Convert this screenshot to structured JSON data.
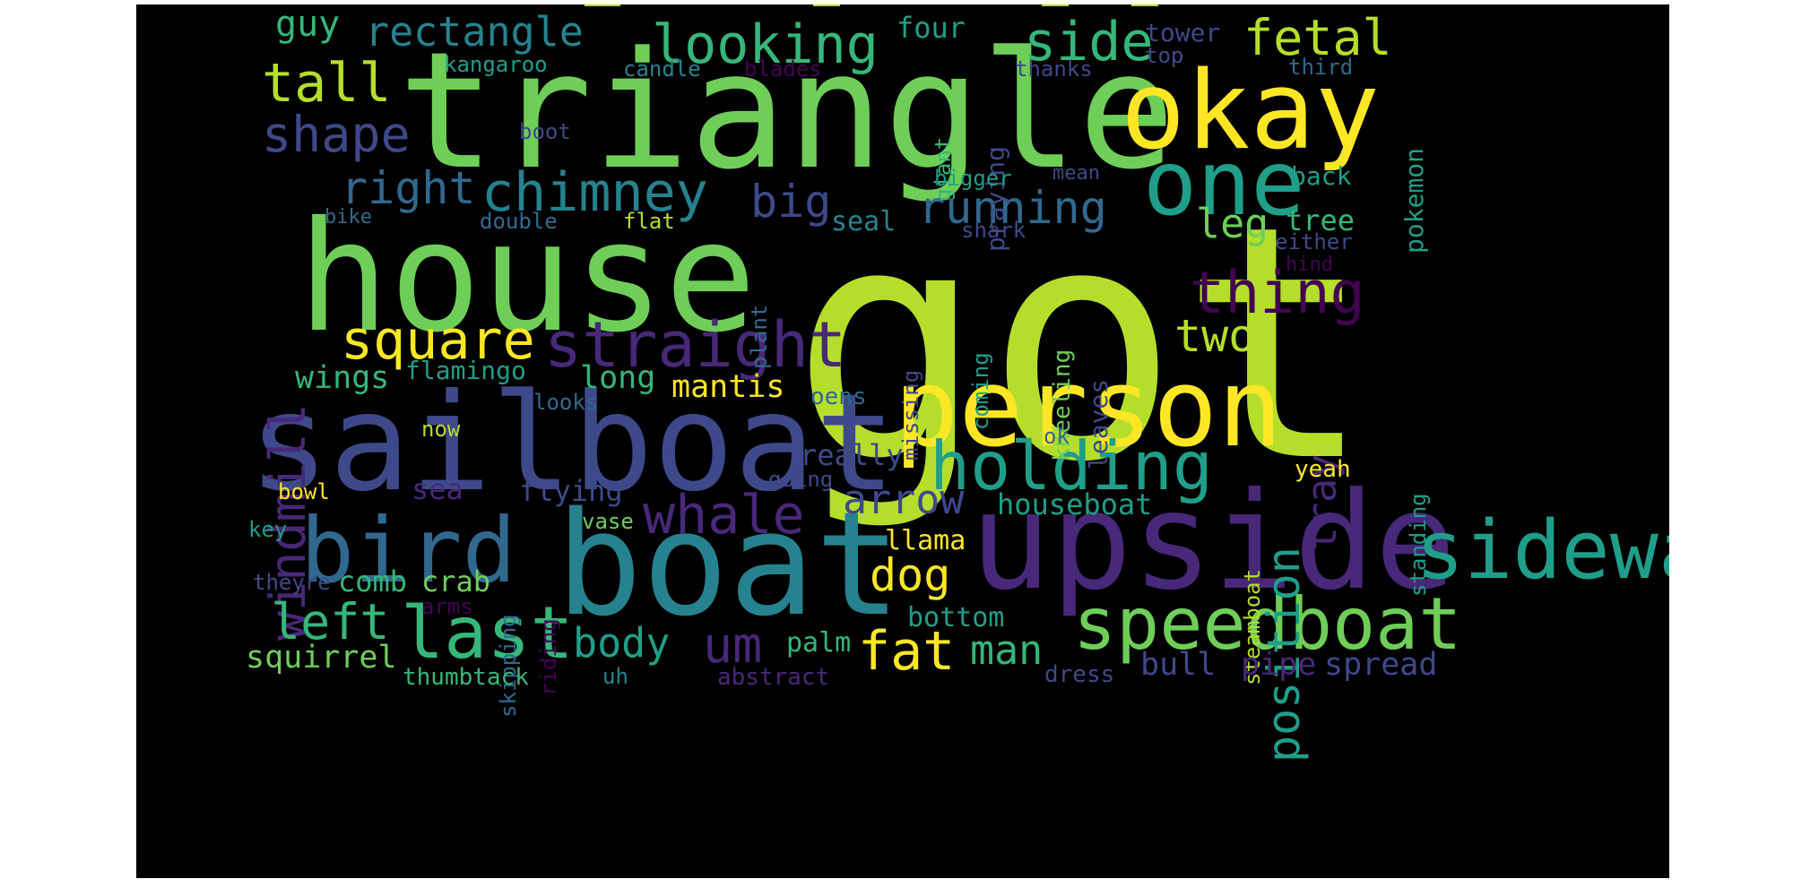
{
  "colors": {
    "background": "#000000",
    "page": "#ffffff",
    "palette": [
      "#440154",
      "#482878",
      "#3e4989",
      "#31688e",
      "#26828e",
      "#1f9e89",
      "#35b779",
      "#6ece58",
      "#b5de2b",
      "#fde725"
    ]
  },
  "words": {
    "got": "got",
    "triangle": "triangle",
    "house": "house",
    "sailboat": "sailboat",
    "boat": "boat",
    "upside": "upside",
    "okay": "okay",
    "person": "person",
    "one": "one",
    "sideways": "sideways",
    "bird": "bird",
    "speedboat": "speedboat",
    "holding": "holding",
    "last": "last",
    "whale": "whale",
    "straight": "straight",
    "square": "square",
    "looking": "looking",
    "rectangle": "rectangle",
    "chimney": "chimney",
    "side": "side",
    "fetal": "fetal",
    "tall": "tall",
    "shape": "shape",
    "right": "right",
    "windmill": "windmill",
    "thing": "thing",
    "running": "running",
    "big": "big",
    "two": "two",
    "arrow": "arrow",
    "position": "position",
    "left": "left",
    "um": "um",
    "fat": "fat",
    "dog": "dog",
    "body": "body",
    "man": "man",
    "guy": "guy",
    "leg": "leg",
    "tray": "tray",
    "four": "four",
    "tower": "tower",
    "pokemon": "pokemon",
    "kangaroo": "kangaroo",
    "candle": "candle",
    "blades": "blades",
    "thanks": "thanks",
    "top": "top",
    "third": "third",
    "boot": "boot",
    "giant": "giant",
    "praying": "praying",
    "bigger": "bigger",
    "mean": "mean",
    "back": "back",
    "bike": "bike",
    "double": "double",
    "flat": "flat",
    "seal": "seal",
    "shark": "shark",
    "tree": "tree",
    "either": "either",
    "plant": "plant",
    "hind": "hind",
    "kneeling": "kneeling",
    "coming": "coming",
    "missing": "missing",
    "leaves": "leaves",
    "flamingo": "flamingo",
    "wings": "wings",
    "long": "long",
    "mantis": "mantis",
    "looks": "looks",
    "oens": "oens",
    "standing": "standing",
    "now": "now",
    "ok": "ok",
    "really": "really",
    "steamboat": "steamboat",
    "yeah": "yeah",
    "going": "going",
    "bowl": "bowl",
    "sea": "sea",
    "flying": "flying",
    "houseboat": "houseboat",
    "key": "key",
    "vase": "vase",
    "skipping": "skipping",
    "llama": "llama",
    "riding": "riding",
    "theyre": "theyre",
    "comb": "comb",
    "crab": "crab",
    "arms": "arms",
    "bottom": "bottom",
    "squirrel": "squirrel",
    "palm": "palm",
    "bull": "bull",
    "pipe": "pipe",
    "spread": "spread",
    "thumbtack": "thumbtack",
    "uh": "uh",
    "abstract": "abstract",
    "dress": "dress"
  }
}
